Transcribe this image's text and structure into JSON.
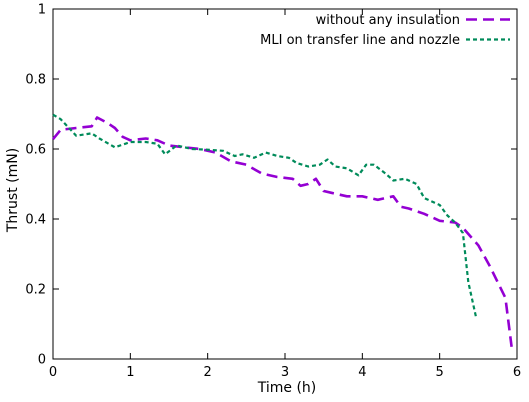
{
  "chart_data": {
    "type": "line",
    "title": "",
    "xlabel": "Time (h)",
    "ylabel": "Thrust (mN)",
    "xlim": [
      0,
      6
    ],
    "ylim": [
      0,
      1
    ],
    "x_ticks": [
      "0",
      "1",
      "2",
      "3",
      "4",
      "5",
      "6"
    ],
    "y_ticks": [
      "0",
      "0.2",
      "0.4",
      "0.6",
      "0.8",
      "1"
    ],
    "legend_position": "top-right",
    "grid": false,
    "series": [
      {
        "name": "without any insulation",
        "color": "#9400d3",
        "dash": "long-dash",
        "x": [
          0,
          0.1,
          0.3,
          0.5,
          0.57,
          0.7,
          0.8,
          0.9,
          1.0,
          1.2,
          1.35,
          1.5,
          1.7,
          1.9,
          2.1,
          2.3,
          2.5,
          2.7,
          2.9,
          3.1,
          3.2,
          3.3,
          3.4,
          3.5,
          3.6,
          3.8,
          4.0,
          4.2,
          4.4,
          4.5,
          4.6,
          4.8,
          5.0,
          5.2,
          5.3,
          5.5,
          5.65,
          5.85,
          5.93
        ],
        "y": [
          0.628,
          0.655,
          0.66,
          0.665,
          0.69,
          0.675,
          0.66,
          0.635,
          0.625,
          0.63,
          0.625,
          0.61,
          0.605,
          0.6,
          0.59,
          0.565,
          0.555,
          0.53,
          0.52,
          0.515,
          0.495,
          0.5,
          0.515,
          0.48,
          0.475,
          0.465,
          0.465,
          0.455,
          0.465,
          0.435,
          0.43,
          0.415,
          0.395,
          0.39,
          0.375,
          0.325,
          0.265,
          0.175,
          0.035
        ]
      },
      {
        "name": "MLI on transfer line and nozzle",
        "color": "#008b5a",
        "dash": "short-dash",
        "x": [
          0,
          0.1,
          0.3,
          0.5,
          0.6,
          0.8,
          1.0,
          1.2,
          1.35,
          1.45,
          1.6,
          1.8,
          2.0,
          2.2,
          2.35,
          2.45,
          2.6,
          2.75,
          2.9,
          3.05,
          3.15,
          3.3,
          3.45,
          3.55,
          3.65,
          3.8,
          3.95,
          4.05,
          4.15,
          4.3,
          4.4,
          4.55,
          4.7,
          4.8,
          4.9,
          5.0,
          5.1,
          5.2,
          5.3,
          5.37,
          5.47
        ],
        "y": [
          0.698,
          0.685,
          0.638,
          0.645,
          0.63,
          0.605,
          0.62,
          0.62,
          0.615,
          0.585,
          0.61,
          0.6,
          0.598,
          0.595,
          0.58,
          0.585,
          0.575,
          0.59,
          0.58,
          0.575,
          0.56,
          0.55,
          0.555,
          0.57,
          0.55,
          0.545,
          0.525,
          0.555,
          0.555,
          0.53,
          0.51,
          0.515,
          0.5,
          0.46,
          0.45,
          0.44,
          0.41,
          0.39,
          0.36,
          0.22,
          0.12
        ]
      }
    ]
  }
}
